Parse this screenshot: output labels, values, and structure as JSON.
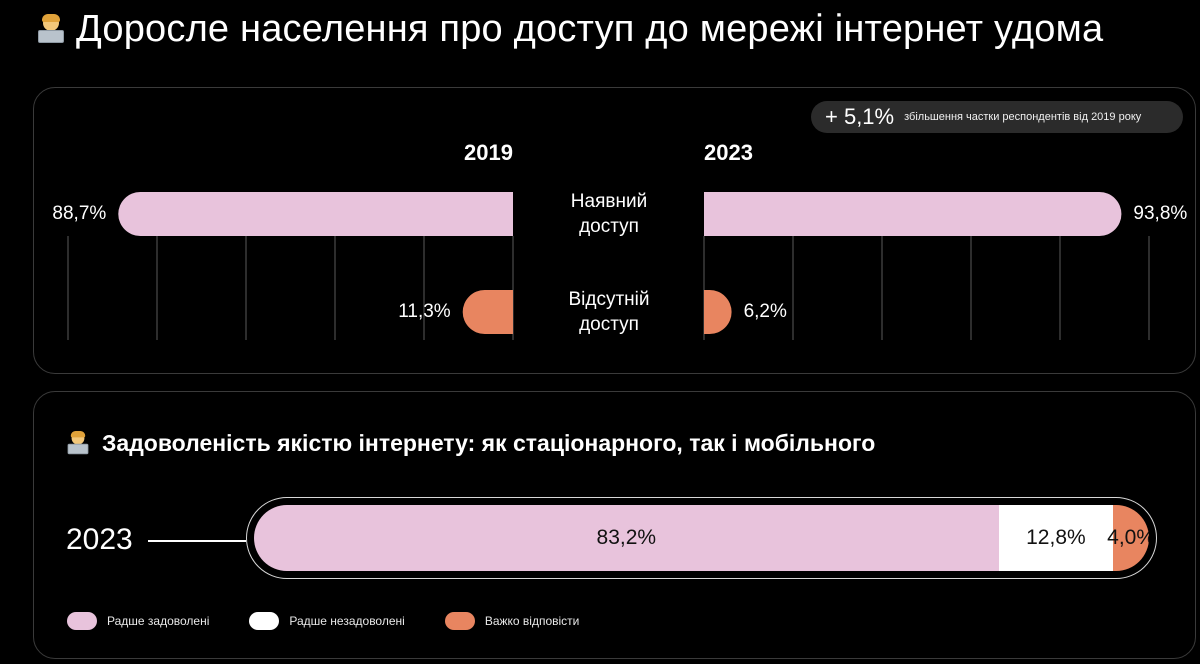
{
  "title": "Доросле населення про доступ до мережі інтернет удома",
  "title_icon": "technologist-emoji-icon",
  "badge": {
    "value": "+ 5,1%",
    "description": "збільшення частки респондентів від 2019 року"
  },
  "colors": {
    "pink": "#e8c3dc",
    "orange": "#e88560",
    "white": "#ffffff",
    "grid": "#3c3c3c"
  },
  "chart_data": [
    {
      "type": "bar",
      "title": "Доросле населення про доступ до мережі інтернет удома",
      "years": [
        "2019",
        "2023"
      ],
      "categories": [
        "Наявний доступ",
        "Відсутній доступ"
      ],
      "series": [
        {
          "name": "2019",
          "values": [
            88.7,
            11.3
          ],
          "labels": [
            "88,7%",
            "11,3%"
          ]
        },
        {
          "name": "2023",
          "values": [
            93.8,
            6.2
          ],
          "labels": [
            "93,8%",
            "6,2%"
          ]
        }
      ],
      "xlim": [
        0,
        100
      ],
      "grid": true,
      "category_labels": [
        [
          "Наявний",
          "доступ"
        ],
        [
          "Відсутній",
          "доступ"
        ]
      ]
    },
    {
      "type": "bar",
      "stacked": true,
      "title": "Задоволеність якістю інтернету: як стаціонарного, так і мобільного",
      "categories": [
        "2023"
      ],
      "series": [
        {
          "name": "Радше задоволені",
          "values": [
            83.2
          ],
          "label": "83,2%",
          "color": "#e8c3dc"
        },
        {
          "name": "Радше незадоволені",
          "values": [
            12.8
          ],
          "label": "12,8%",
          "color": "#ffffff"
        },
        {
          "name": "Важко відповісти",
          "values": [
            4.0
          ],
          "label": "4,0%",
          "color": "#e88560"
        }
      ],
      "legend": "bottom-left"
    }
  ],
  "section2": {
    "title": "Задоволеність якістю інтернету: як стаціонарного, так і мобільного",
    "year": "2023"
  },
  "legend": [
    {
      "label": "Радше задоволені",
      "color": "#e8c3dc"
    },
    {
      "label": "Радше незадоволені",
      "color": "#ffffff"
    },
    {
      "label": "Важко відповісти",
      "color": "#e88560"
    }
  ]
}
